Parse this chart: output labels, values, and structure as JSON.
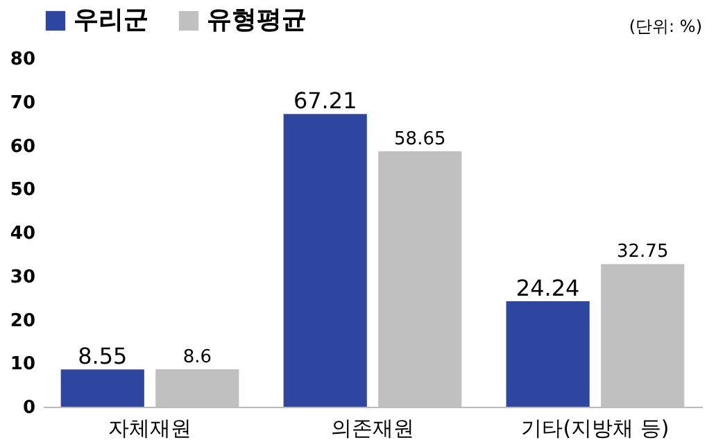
{
  "chart_data": {
    "type": "bar",
    "categories": [
      "자체재원",
      "의존재원",
      "기타(지방채 등)"
    ],
    "series": [
      {
        "name": "우리군",
        "color": "#2e46a0",
        "values": [
          8.55,
          67.21,
          24.24
        ]
      },
      {
        "name": "유형평균",
        "color": "#c0c0c0",
        "values": [
          8.6,
          58.65,
          32.75
        ]
      }
    ],
    "ylim": [
      0,
      80
    ],
    "yticks": [
      0,
      10,
      20,
      30,
      40,
      50,
      60,
      70,
      80
    ],
    "legend": "top",
    "data_labels": true,
    "annotations": [
      "(단위: %)"
    ]
  }
}
